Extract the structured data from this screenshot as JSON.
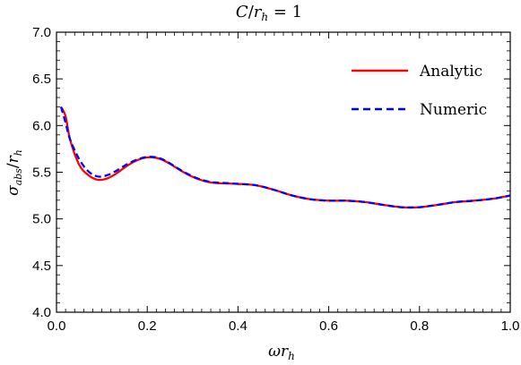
{
  "chart_data": {
    "type": "line",
    "title": "C/r_h = 1",
    "xlabel": "ωr_h",
    "ylabel": "σ_abs/r_h",
    "xlim": [
      0.0,
      1.0
    ],
    "ylim": [
      4.0,
      7.0
    ],
    "xticks": [
      "0.0",
      "0.2",
      "0.4",
      "0.6",
      "0.8",
      "1.0"
    ],
    "yticks": [
      "4.0",
      "4.5",
      "5.0",
      "5.5",
      "6.0",
      "6.5",
      "7.0"
    ],
    "legend_position": "top-right",
    "grid": false,
    "series": [
      {
        "name": "Analytic",
        "color": "#ff0000",
        "style": "solid",
        "x": [
          0.01,
          0.02,
          0.03,
          0.05,
          0.07,
          0.09,
          0.11,
          0.13,
          0.15,
          0.17,
          0.19,
          0.21,
          0.23,
          0.25,
          0.28,
          0.31,
          0.34,
          0.37,
          0.4,
          0.44,
          0.48,
          0.52,
          0.56,
          0.6,
          0.64,
          0.68,
          0.72,
          0.76,
          0.8,
          0.84,
          0.88,
          0.92,
          0.96,
          1.0
        ],
        "y": [
          6.2,
          6.1,
          5.85,
          5.58,
          5.47,
          5.42,
          5.43,
          5.48,
          5.55,
          5.61,
          5.65,
          5.66,
          5.64,
          5.59,
          5.5,
          5.43,
          5.39,
          5.38,
          5.375,
          5.36,
          5.31,
          5.25,
          5.21,
          5.195,
          5.195,
          5.18,
          5.15,
          5.125,
          5.125,
          5.15,
          5.18,
          5.195,
          5.215,
          5.25
        ]
      },
      {
        "name": "Numeric",
        "color": "#0000ff",
        "style": "dashed",
        "x": [
          0.01,
          0.02,
          0.03,
          0.05,
          0.07,
          0.09,
          0.11,
          0.13,
          0.15,
          0.17,
          0.19,
          0.21,
          0.23,
          0.25,
          0.28,
          0.31,
          0.34,
          0.37,
          0.4,
          0.44,
          0.48,
          0.52,
          0.56,
          0.6,
          0.64,
          0.68,
          0.72,
          0.76,
          0.8,
          0.84,
          0.88,
          0.92,
          0.96,
          1.0
        ],
        "y": [
          6.2,
          6.03,
          5.85,
          5.64,
          5.51,
          5.455,
          5.465,
          5.51,
          5.57,
          5.62,
          5.655,
          5.665,
          5.645,
          5.595,
          5.505,
          5.435,
          5.395,
          5.385,
          5.375,
          5.36,
          5.31,
          5.25,
          5.21,
          5.195,
          5.195,
          5.18,
          5.15,
          5.125,
          5.125,
          5.15,
          5.18,
          5.195,
          5.215,
          5.25
        ]
      }
    ]
  }
}
